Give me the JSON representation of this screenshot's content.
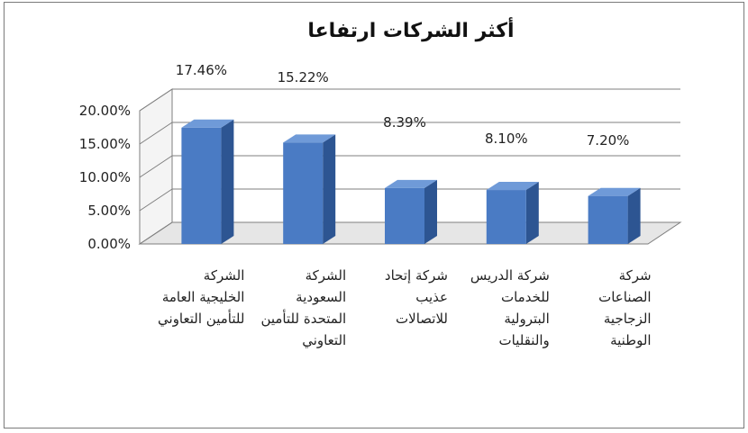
{
  "chart_data": {
    "type": "bar",
    "title": "أكثر الشركات ارتفاعا",
    "categories": [
      [
        "الشركة",
        "الخليجية العامة",
        "للتأمين التعاوني"
      ],
      [
        "الشركة",
        "السعودية",
        "المتحدة للتأمين",
        "التعاوني"
      ],
      [
        "شركة إتحاد",
        "عذيب",
        "للاتصالات"
      ],
      [
        "شركة الدريس",
        "للخدمات",
        "البترولية",
        "والنقليات"
      ],
      [
        "شركة",
        "الصناعات",
        "الزجاجية",
        "الوطنية"
      ]
    ],
    "values": [
      17.46,
      15.22,
      8.39,
      8.1,
      7.2
    ],
    "data_labels": [
      "17.46%",
      "15.22%",
      "8.39%",
      "8.10%",
      "7.20%"
    ],
    "y_ticks": [
      "0.00%",
      "5.00%",
      "10.00%",
      "15.00%",
      "20.00%"
    ],
    "ylim": [
      0,
      20
    ],
    "grid": true,
    "three_d": true,
    "colors": {
      "bar_front": "#4a7bc4",
      "bar_side": "#2d5592",
      "bar_top": "#6f9ad8",
      "grid": "#7f7f7f",
      "wall": "#c9c9c9"
    }
  }
}
